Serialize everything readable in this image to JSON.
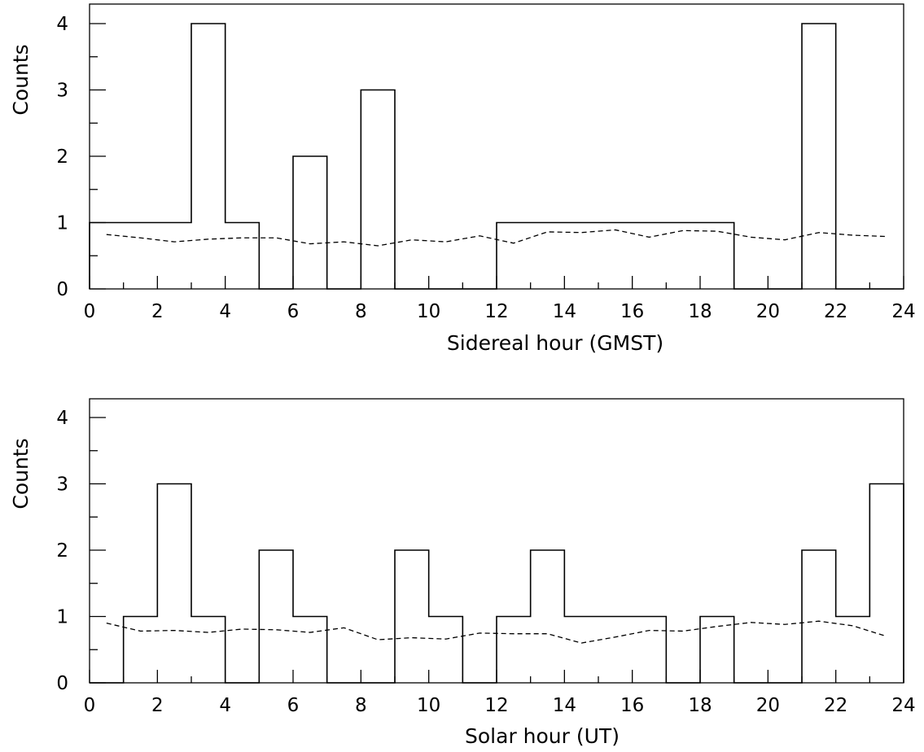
{
  "chart_data": [
    {
      "type": "histogram",
      "xlabel": "Sidereal hour (GMST)",
      "ylabel": "Counts",
      "xlim": [
        0,
        24
      ],
      "ylim": [
        0,
        4.3
      ],
      "xticks": [
        "0",
        "2",
        "4",
        "6",
        "8",
        "10",
        "12",
        "14",
        "16",
        "18",
        "20",
        "22",
        "24"
      ],
      "yticks": [
        "0",
        "1",
        "2",
        "3",
        "4"
      ],
      "bin_width": 1,
      "counts": [
        1,
        1,
        1,
        4,
        1,
        0,
        2,
        0,
        3,
        0,
        0,
        0,
        1,
        1,
        1,
        1,
        1,
        1,
        1,
        0,
        0,
        4,
        0,
        0
      ],
      "expected_x": [
        0.5,
        1.5,
        2.5,
        3.5,
        4.5,
        5.5,
        6.5,
        7.5,
        8.5,
        9.5,
        10.5,
        11.5,
        12.5,
        13.5,
        14.5,
        15.5,
        16.5,
        17.5,
        18.5,
        19.5,
        20.5,
        21.5,
        22.5,
        23.5
      ],
      "expected": [
        0.82,
        0.77,
        0.71,
        0.75,
        0.77,
        0.77,
        0.68,
        0.71,
        0.65,
        0.74,
        0.71,
        0.8,
        0.69,
        0.86,
        0.85,
        0.89,
        0.78,
        0.88,
        0.87,
        0.78,
        0.74,
        0.85,
        0.81,
        0.79
      ],
      "grid": false
    },
    {
      "type": "histogram",
      "xlabel": "Solar hour (UT)",
      "ylabel": "Counts",
      "xlim": [
        0,
        24
      ],
      "ylim": [
        0,
        4.3
      ],
      "xticks": [
        "0",
        "2",
        "4",
        "6",
        "8",
        "10",
        "12",
        "14",
        "16",
        "18",
        "20",
        "22",
        "24"
      ],
      "yticks": [
        "0",
        "1",
        "2",
        "3",
        "4"
      ],
      "bin_width": 1,
      "counts": [
        0,
        1,
        3,
        1,
        0,
        2,
        1,
        0,
        0,
        2,
        1,
        0,
        1,
        2,
        1,
        1,
        1,
        0,
        1,
        0,
        0,
        2,
        1,
        3
      ],
      "expected_x": [
        0.5,
        1.5,
        2.5,
        3.5,
        4.5,
        5.5,
        6.5,
        7.5,
        8.5,
        9.5,
        10.5,
        11.5,
        12.5,
        13.5,
        14.5,
        15.5,
        16.5,
        17.5,
        18.5,
        19.5,
        20.5,
        21.5,
        22.5,
        23.5
      ],
      "expected": [
        0.9,
        0.78,
        0.79,
        0.76,
        0.81,
        0.8,
        0.76,
        0.83,
        0.65,
        0.68,
        0.66,
        0.75,
        0.74,
        0.74,
        0.6,
        0.69,
        0.79,
        0.78,
        0.85,
        0.91,
        0.88,
        0.93,
        0.86,
        0.7
      ],
      "grid": false
    }
  ]
}
